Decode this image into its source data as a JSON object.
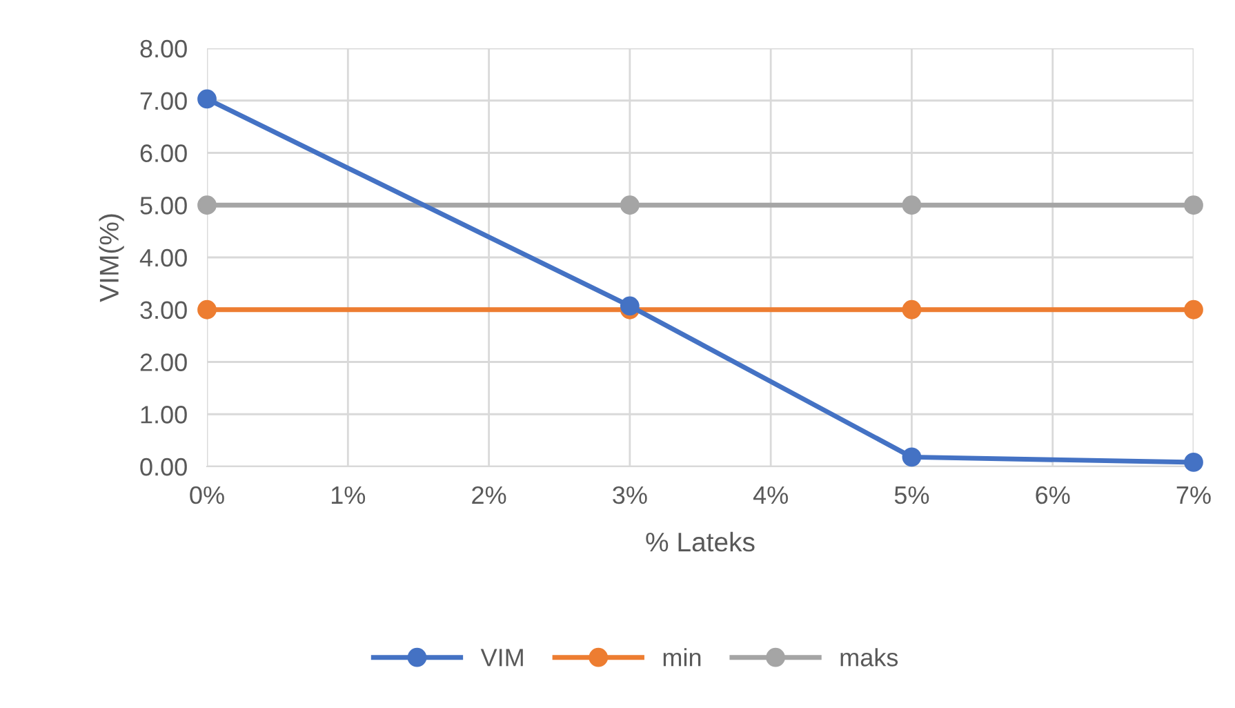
{
  "chart_data": {
    "type": "line",
    "xlabel": "% Lateks",
    "ylabel": "VIM(%)",
    "x": [
      0,
      3,
      5,
      7
    ],
    "series": [
      {
        "name": "VIM",
        "color": "#4472c4",
        "values": [
          7.03,
          3.07,
          0.18,
          0.08
        ]
      },
      {
        "name": "min",
        "color": "#ed7d31",
        "values": [
          3,
          3,
          3,
          3
        ]
      },
      {
        "name": "maks",
        "color": "#a5a5a5",
        "values": [
          5,
          5,
          5,
          5
        ]
      }
    ],
    "xlim": [
      0,
      7
    ],
    "xticks": [
      {
        "value": 0,
        "label": "0%"
      },
      {
        "value": 1,
        "label": "1%"
      },
      {
        "value": 2,
        "label": "2%"
      },
      {
        "value": 3,
        "label": "3%"
      },
      {
        "value": 4,
        "label": "4%"
      },
      {
        "value": 5,
        "label": "5%"
      },
      {
        "value": 6,
        "label": "6%"
      },
      {
        "value": 7,
        "label": "7%"
      }
    ],
    "ylim": [
      0,
      8
    ],
    "yticks": [
      {
        "value": 0,
        "label": "0.00"
      },
      {
        "value": 1,
        "label": "1.00"
      },
      {
        "value": 2,
        "label": "2.00"
      },
      {
        "value": 3,
        "label": "3.00"
      },
      {
        "value": 4,
        "label": "4.00"
      },
      {
        "value": 5,
        "label": "5.00"
      },
      {
        "value": 6,
        "label": "6.00"
      },
      {
        "value": 7,
        "label": "7.00"
      },
      {
        "value": 8,
        "label": "8.00"
      }
    ],
    "grid": true,
    "legend": "bottom",
    "marker": "circle",
    "line_style": "solid"
  }
}
